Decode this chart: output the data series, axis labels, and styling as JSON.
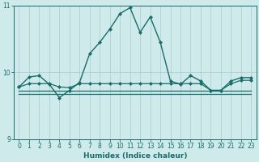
{
  "xlabel": "Humidex (Indice chaleur)",
  "xlim": [
    -0.5,
    23.5
  ],
  "ylim": [
    9,
    11
  ],
  "yticks": [
    9,
    10,
    11
  ],
  "xticks": [
    0,
    1,
    2,
    3,
    4,
    5,
    6,
    7,
    8,
    9,
    10,
    11,
    12,
    13,
    14,
    15,
    16,
    17,
    18,
    19,
    20,
    21,
    22,
    23
  ],
  "bg_color": "#ceeaea",
  "line_color": "#1a6b6b",
  "grid_color": "#a8cccc",
  "lines": [
    {
      "x": [
        0,
        1,
        2,
        3,
        4,
        5,
        6,
        7,
        8,
        9,
        10,
        11,
        12,
        13,
        14,
        15,
        16,
        17,
        18,
        19,
        20,
        21,
        22,
        23
      ],
      "y": [
        9.78,
        9.93,
        9.95,
        9.82,
        9.62,
        9.73,
        9.85,
        10.28,
        10.45,
        10.65,
        10.88,
        10.97,
        10.6,
        10.83,
        10.45,
        9.87,
        9.82,
        9.95,
        9.87,
        9.73,
        9.73,
        9.87,
        9.92,
        9.92
      ],
      "marker": true,
      "linewidth": 1.0
    },
    {
      "x": [
        0,
        1,
        2,
        3,
        4,
        5,
        6,
        7,
        8,
        9,
        10,
        11,
        12,
        13,
        14,
        15,
        16,
        17,
        18,
        19,
        20,
        21,
        22,
        23
      ],
      "y": [
        9.78,
        9.83,
        9.83,
        9.83,
        9.78,
        9.77,
        9.83,
        9.83,
        9.83,
        9.83,
        9.83,
        9.83,
        9.83,
        9.83,
        9.83,
        9.83,
        9.83,
        9.83,
        9.83,
        9.73,
        9.73,
        9.83,
        9.88,
        9.88
      ],
      "marker": true,
      "linewidth": 0.9
    },
    {
      "x": [
        0,
        1,
        2,
        3,
        4,
        5,
        6,
        7,
        8,
        9,
        10,
        11,
        12,
        13,
        14,
        15,
        16,
        17,
        18,
        19,
        20,
        21,
        22,
        23
      ],
      "y": [
        9.73,
        9.73,
        9.73,
        9.73,
        9.73,
        9.73,
        9.73,
        9.73,
        9.73,
        9.73,
        9.73,
        9.73,
        9.73,
        9.73,
        9.73,
        9.73,
        9.73,
        9.73,
        9.73,
        9.73,
        9.73,
        9.73,
        9.73,
        9.73
      ],
      "marker": false,
      "linewidth": 0.9
    },
    {
      "x": [
        0,
        1,
        2,
        3,
        4,
        5,
        6,
        7,
        8,
        9,
        10,
        11,
        12,
        13,
        14,
        15,
        16,
        17,
        18,
        19,
        20,
        21,
        22,
        23
      ],
      "y": [
        9.68,
        9.68,
        9.68,
        9.68,
        9.68,
        9.68,
        9.68,
        9.68,
        9.68,
        9.68,
        9.68,
        9.68,
        9.68,
        9.68,
        9.68,
        9.68,
        9.68,
        9.68,
        9.68,
        9.68,
        9.68,
        9.68,
        9.68,
        9.68
      ],
      "marker": false,
      "linewidth": 0.9
    }
  ]
}
